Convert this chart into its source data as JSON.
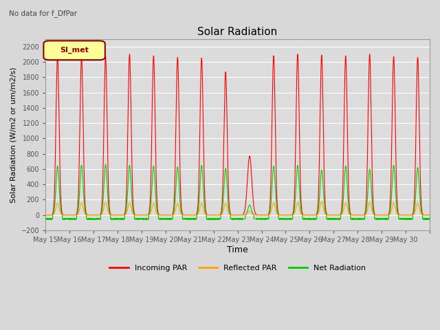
{
  "title": "Solar Radiation",
  "subtitle": "No data for f_DfPar",
  "xlabel": "Time",
  "ylabel": "Solar Radiation (W/m2 or um/m2/s)",
  "ylim": [
    -200,
    2300
  ],
  "yticks": [
    -200,
    0,
    200,
    400,
    600,
    800,
    1000,
    1200,
    1400,
    1600,
    1800,
    2000,
    2200
  ],
  "start_day": 15,
  "end_day": 30,
  "num_days": 16,
  "incoming_color": "#FF0000",
  "reflected_color": "#FFA500",
  "net_color": "#00CC00",
  "background_color": "#D8D8D8",
  "plot_bg_color": "#DCDCDC",
  "grid_color": "#FFFFFF",
  "legend_label": "SI_met",
  "legend_box_color": "#FFFF99",
  "legend_box_edge": "#8B0000",
  "incoming_peak": 2100,
  "reflected_peak": 160,
  "net_peak": 650,
  "net_night": -50,
  "overcast_day_idx": 8,
  "overcast_incoming": 770,
  "overcast_net": 130,
  "overcast_ref": 50,
  "title_fontsize": 11,
  "ylabel_fontsize": 8,
  "xlabel_fontsize": 9,
  "tick_fontsize": 7,
  "legend_fontsize": 8
}
